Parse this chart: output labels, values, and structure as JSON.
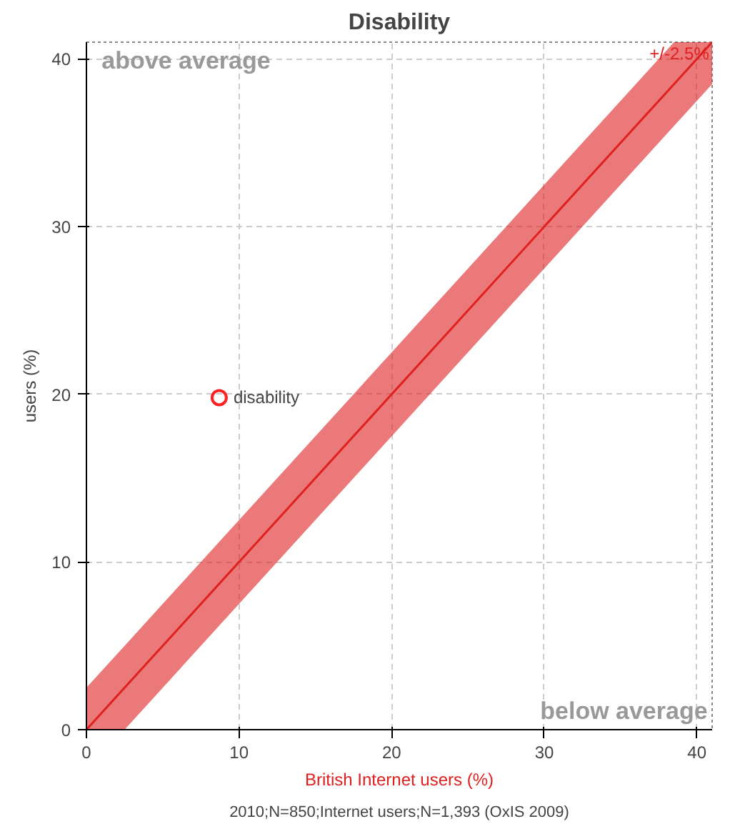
{
  "chart_data": {
    "type": "scatter",
    "title": "Disability",
    "xlabel": "British Internet users (%)",
    "ylabel": "users (%)",
    "xlim": [
      0,
      41
    ],
    "ylim": [
      0,
      41
    ],
    "xticks": [
      0,
      10,
      20,
      30,
      40
    ],
    "yticks": [
      0,
      10,
      20,
      30,
      40
    ],
    "grid": true,
    "series": [
      {
        "color": "#ff2020",
        "marker": "circle",
        "x": [
          8.7
        ],
        "values": [
          19.8
        ]
      },
      {
        "type": "line",
        "color": "#e02020",
        "x": [
          0,
          2.5,
          38.5,
          41
        ],
        "values": [
          0,
          2.5,
          38.5,
          41
        ],
        "lower": [
          0,
          0,
          36,
          38.5
        ],
        "upper": [
          2.5,
          5,
          41,
          41
        ]
      }
    ],
    "annotations": [
      "above average",
      "below average",
      "+/-2.5%",
      "2010;N=850;Internet users;N=1,393 (OxIS 2009)",
      {
        "text": "disability",
        "x": 8.7,
        "y": 19.8
      }
    ]
  }
}
